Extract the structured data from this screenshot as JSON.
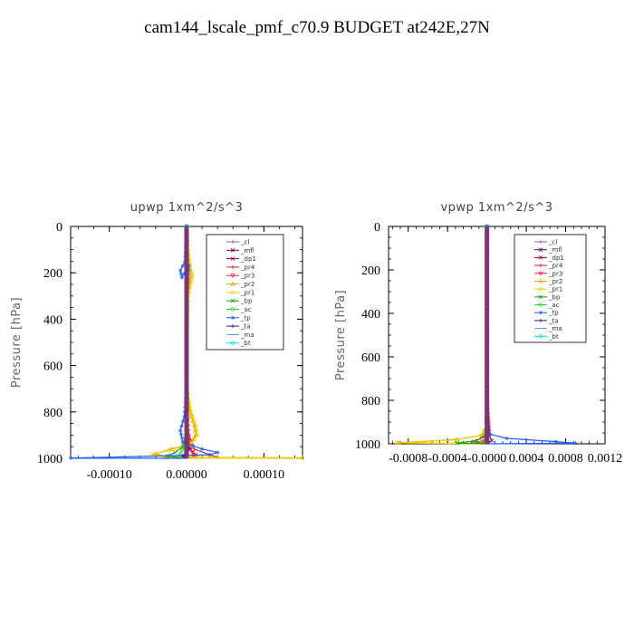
{
  "figure": {
    "title": "cam144_lscale_pmf_c70.9  BUDGET at242E,27N"
  },
  "chart_data": [
    {
      "type": "line",
      "title": "upwp   1xm^2/s^3",
      "xlabel": "",
      "ylabel": "Pressure [hPa]",
      "xlim": [
        -0.00015,
        0.00015
      ],
      "ylim": [
        1000,
        0
      ],
      "x_ticks": [
        -0.0001,
        0.0,
        0.0001
      ],
      "x_tick_labels": [
        "-0.00010",
        "0.00000",
        "0.00010"
      ],
      "y_ticks": [
        0,
        200,
        400,
        600,
        800,
        1000
      ],
      "y_tick_labels": [
        "0",
        "200",
        "400",
        "600",
        "800",
        "1000"
      ],
      "grid": false,
      "legend_placement": "top-right",
      "series": [
        {
          "name": "_cl",
          "color": "#8855aa",
          "marker": "+",
          "points": [
            [
              0,
              0
            ],
            [
              0,
              200
            ],
            [
              0,
              400
            ],
            [
              0,
              600
            ],
            [
              0,
              800
            ],
            [
              0,
              900
            ],
            [
              0,
              960
            ],
            [
              0,
              1000
            ]
          ]
        },
        {
          "name": "_mfl",
          "color": "#800040",
          "marker": "x",
          "points": [
            [
              0,
              0
            ],
            [
              0,
              200
            ],
            [
              0,
              400
            ],
            [
              0,
              600
            ],
            [
              0,
              800
            ],
            [
              0,
              900
            ],
            [
              0,
              960
            ],
            [
              0,
              1000
            ]
          ]
        },
        {
          "name": "_dp1",
          "color": "#a00030",
          "marker": "x",
          "points": [
            [
              0,
              0
            ],
            [
              0,
              200
            ],
            [
              0,
              400
            ],
            [
              0,
              600
            ],
            [
              0,
              800
            ],
            [
              0,
              920
            ],
            [
              5e-06,
              960
            ],
            [
              1.2e-05,
              985
            ],
            [
              5e-06,
              1000
            ]
          ]
        },
        {
          "name": "_pr4",
          "color": "#d02020",
          "marker": "+",
          "points": [
            [
              0,
              0
            ],
            [
              0,
              400
            ],
            [
              0,
              800
            ],
            [
              3e-06,
              900
            ],
            [
              1e-05,
              960
            ],
            [
              3e-05,
              985
            ],
            [
              4e-05,
              995
            ],
            [
              1e-05,
              1000
            ]
          ]
        },
        {
          "name": "_pr3",
          "color": "#ff2040",
          "marker": "v",
          "points": [
            [
              0,
              0
            ],
            [
              0,
              400
            ],
            [
              0,
              800
            ],
            [
              2e-06,
              900
            ],
            [
              5e-06,
              960
            ],
            [
              1e-05,
              990
            ],
            [
              0,
              1000
            ]
          ]
        },
        {
          "name": "_pr2",
          "color": "#f0a000",
          "marker": "^",
          "points": [
            [
              0,
              0
            ],
            [
              1e-06,
              100
            ],
            [
              4e-06,
              180
            ],
            [
              6e-06,
              210
            ],
            [
              1e-06,
              300
            ],
            [
              0,
              500
            ],
            [
              0,
              700
            ],
            [
              4e-06,
              800
            ],
            [
              1e-05,
              860
            ],
            [
              1.2e-05,
              900
            ],
            [
              5e-06,
              940
            ],
            [
              -2e-05,
              960
            ],
            [
              -4e-05,
              980
            ],
            [
              -2.5e-05,
              995
            ],
            [
              0.00015,
              998
            ],
            [
              0,
              1000
            ]
          ]
        },
        {
          "name": "_pr1",
          "color": "#f0d000",
          "marker": "o",
          "points": [
            [
              0,
              0
            ],
            [
              2e-06,
              100
            ],
            [
              5e-06,
              180
            ],
            [
              8e-06,
              210
            ],
            [
              2e-06,
              300
            ],
            [
              0,
              500
            ],
            [
              0,
              700
            ],
            [
              6e-06,
              800
            ],
            [
              1.2e-05,
              860
            ],
            [
              1.4e-05,
              900
            ],
            [
              6e-06,
              940
            ],
            [
              -2.2e-05,
              965
            ],
            [
              -4.5e-05,
              982
            ],
            [
              -2.8e-05,
              995
            ],
            [
              0.00015,
              999
            ],
            [
              0,
              1000
            ]
          ]
        },
        {
          "name": "_bp",
          "color": "#10a010",
          "marker": "x",
          "points": [
            [
              0,
              0
            ],
            [
              0,
              400
            ],
            [
              0,
              800
            ],
            [
              0,
              900
            ],
            [
              -5e-06,
              950
            ],
            [
              -1.5e-05,
              975
            ],
            [
              -2.5e-05,
              990
            ],
            [
              0,
              1000
            ]
          ]
        },
        {
          "name": "_ac",
          "color": "#30d030",
          "marker": "o",
          "points": [
            [
              0,
              0
            ],
            [
              0,
              400
            ],
            [
              0,
              800
            ],
            [
              0,
              900
            ],
            [
              -3e-06,
              950
            ],
            [
              -8e-06,
              980
            ],
            [
              -1.2e-05,
              995
            ],
            [
              0,
              1000
            ]
          ]
        },
        {
          "name": "_tp",
          "color": "#2060ff",
          "marker": "*",
          "points": [
            [
              0,
              0
            ],
            [
              -2e-06,
              150
            ],
            [
              -8e-06,
              190
            ],
            [
              -6e-06,
              220
            ],
            [
              3e-06,
              170
            ],
            [
              0,
              300
            ],
            [
              0,
              500
            ],
            [
              0,
              700
            ],
            [
              -3e-06,
              820
            ],
            [
              -8e-06,
              880
            ],
            [
              -5e-06,
              930
            ],
            [
              2e-05,
              960
            ],
            [
              4e-05,
              975
            ],
            [
              3e-05,
              985
            ],
            [
              -0.00015,
              999
            ],
            [
              0,
              1000
            ]
          ]
        },
        {
          "name": "_ta",
          "color": "#1020a0",
          "marker": "+",
          "points": [
            [
              0,
              0
            ],
            [
              0,
              400
            ],
            [
              0,
              800
            ],
            [
              0,
              900
            ],
            [
              3e-06,
              960
            ],
            [
              -5e-06,
              990
            ],
            [
              0,
              1000
            ]
          ]
        },
        {
          "name": "_ma",
          "color": "#40a0ff",
          "marker": "-",
          "points": [
            [
              0,
              0
            ],
            [
              0,
              400
            ],
            [
              0,
              800
            ],
            [
              0,
              900
            ],
            [
              0,
              960
            ],
            [
              0,
              1000
            ]
          ]
        },
        {
          "name": "_bt",
          "color": "#00e0e0",
          "marker": "o",
          "points": [
            [
              0,
              0
            ],
            [
              0,
              400
            ],
            [
              0,
              800
            ],
            [
              0,
              900
            ],
            [
              0,
              960
            ],
            [
              0,
              1000
            ]
          ]
        }
      ]
    },
    {
      "type": "line",
      "title": "vpwp   1xm^2/s^3",
      "xlabel": "",
      "ylabel": "Pressure [hPa]",
      "xlim": [
        -0.001,
        0.0012
      ],
      "ylim": [
        1000,
        0
      ],
      "x_ticks": [
        -0.0008,
        -0.0004,
        0.0,
        0.0004,
        0.0008,
        0.0012
      ],
      "x_tick_labels": [
        "-0.0008",
        "-0.0004",
        "-0.0000",
        "0.0004",
        "0.0008",
        "0.0012"
      ],
      "y_ticks": [
        0,
        200,
        400,
        600,
        800,
        1000
      ],
      "y_tick_labels": [
        "0",
        "200",
        "400",
        "600",
        "800",
        "1000"
      ],
      "grid": false,
      "legend_placement": "top-right",
      "series": [
        {
          "name": "_cl",
          "color": "#8855aa",
          "marker": "+",
          "points": [
            [
              0,
              0
            ],
            [
              0,
              400
            ],
            [
              0,
              800
            ],
            [
              0,
              960
            ],
            [
              0,
              1000
            ]
          ]
        },
        {
          "name": "_mfl",
          "color": "#800040",
          "marker": "x",
          "points": [
            [
              0,
              0
            ],
            [
              0,
              400
            ],
            [
              0,
              800
            ],
            [
              0,
              960
            ],
            [
              0,
              1000
            ]
          ]
        },
        {
          "name": "_dp1",
          "color": "#a00030",
          "marker": "x",
          "points": [
            [
              0,
              0
            ],
            [
              0,
              400
            ],
            [
              0,
              800
            ],
            [
              2e-05,
              960
            ],
            [
              5e-05,
              985
            ],
            [
              0,
              1000
            ]
          ]
        },
        {
          "name": "_pr4",
          "color": "#d02020",
          "marker": "+",
          "points": [
            [
              0,
              0
            ],
            [
              0,
              400
            ],
            [
              0,
              800
            ],
            [
              3e-05,
              960
            ],
            [
              -0.00015,
              990
            ],
            [
              0,
              1000
            ]
          ]
        },
        {
          "name": "_pr3",
          "color": "#ff2040",
          "marker": "v",
          "points": [
            [
              0,
              0
            ],
            [
              0,
              400
            ],
            [
              0,
              800
            ],
            [
              1e-05,
              960
            ],
            [
              -5e-05,
              990
            ],
            [
              0,
              1000
            ]
          ]
        },
        {
          "name": "_pr2",
          "color": "#f0a000",
          "marker": "^",
          "points": [
            [
              0,
              0
            ],
            [
              0,
              400
            ],
            [
              0,
              800
            ],
            [
              0,
              920
            ],
            [
              -5e-05,
              960
            ],
            [
              -0.0003,
              980
            ],
            [
              -0.0009,
              995
            ],
            [
              0,
              1000
            ]
          ]
        },
        {
          "name": "_pr1",
          "color": "#f0d000",
          "marker": "o",
          "points": [
            [
              0,
              0
            ],
            [
              0,
              400
            ],
            [
              0,
              800
            ],
            [
              0,
              920
            ],
            [
              -6e-05,
              962
            ],
            [
              -0.00032,
              982
            ],
            [
              -0.00092,
              996
            ],
            [
              0,
              1000
            ]
          ]
        },
        {
          "name": "_bp",
          "color": "#10a010",
          "marker": "x",
          "points": [
            [
              0,
              0
            ],
            [
              0,
              400
            ],
            [
              0,
              800
            ],
            [
              0,
              920
            ],
            [
              -2e-05,
              960
            ],
            [
              -0.0001,
              985
            ],
            [
              -0.0003,
              997
            ],
            [
              0,
              1000
            ]
          ]
        },
        {
          "name": "_ac",
          "color": "#30d030",
          "marker": "o",
          "points": [
            [
              0,
              0
            ],
            [
              0,
              400
            ],
            [
              0,
              800
            ],
            [
              0,
              960
            ],
            [
              -3e-05,
              990
            ],
            [
              0,
              1000
            ]
          ]
        },
        {
          "name": "_tp",
          "color": "#2060ff",
          "marker": "*",
          "points": [
            [
              0,
              0
            ],
            [
              0,
              400
            ],
            [
              0,
              800
            ],
            [
              -1e-05,
              900
            ],
            [
              3e-05,
              955
            ],
            [
              0.0002,
              975
            ],
            [
              0.0007,
              990
            ],
            [
              0.0009,
              997
            ],
            [
              0,
              1000
            ]
          ]
        },
        {
          "name": "_ta",
          "color": "#1020a0",
          "marker": "+",
          "points": [
            [
              0,
              0
            ],
            [
              0,
              400
            ],
            [
              0,
              800
            ],
            [
              0,
              960
            ],
            [
              2e-05,
              990
            ],
            [
              0,
              1000
            ]
          ]
        },
        {
          "name": "_ma",
          "color": "#40a0ff",
          "marker": "-",
          "points": [
            [
              0,
              0
            ],
            [
              0,
              400
            ],
            [
              0,
              800
            ],
            [
              0,
              960
            ],
            [
              0,
              1000
            ]
          ]
        },
        {
          "name": "_bt",
          "color": "#00e0e0",
          "marker": "o",
          "points": [
            [
              0,
              0
            ],
            [
              0,
              400
            ],
            [
              0,
              800
            ],
            [
              0,
              960
            ],
            [
              0,
              1000
            ]
          ]
        }
      ]
    }
  ]
}
